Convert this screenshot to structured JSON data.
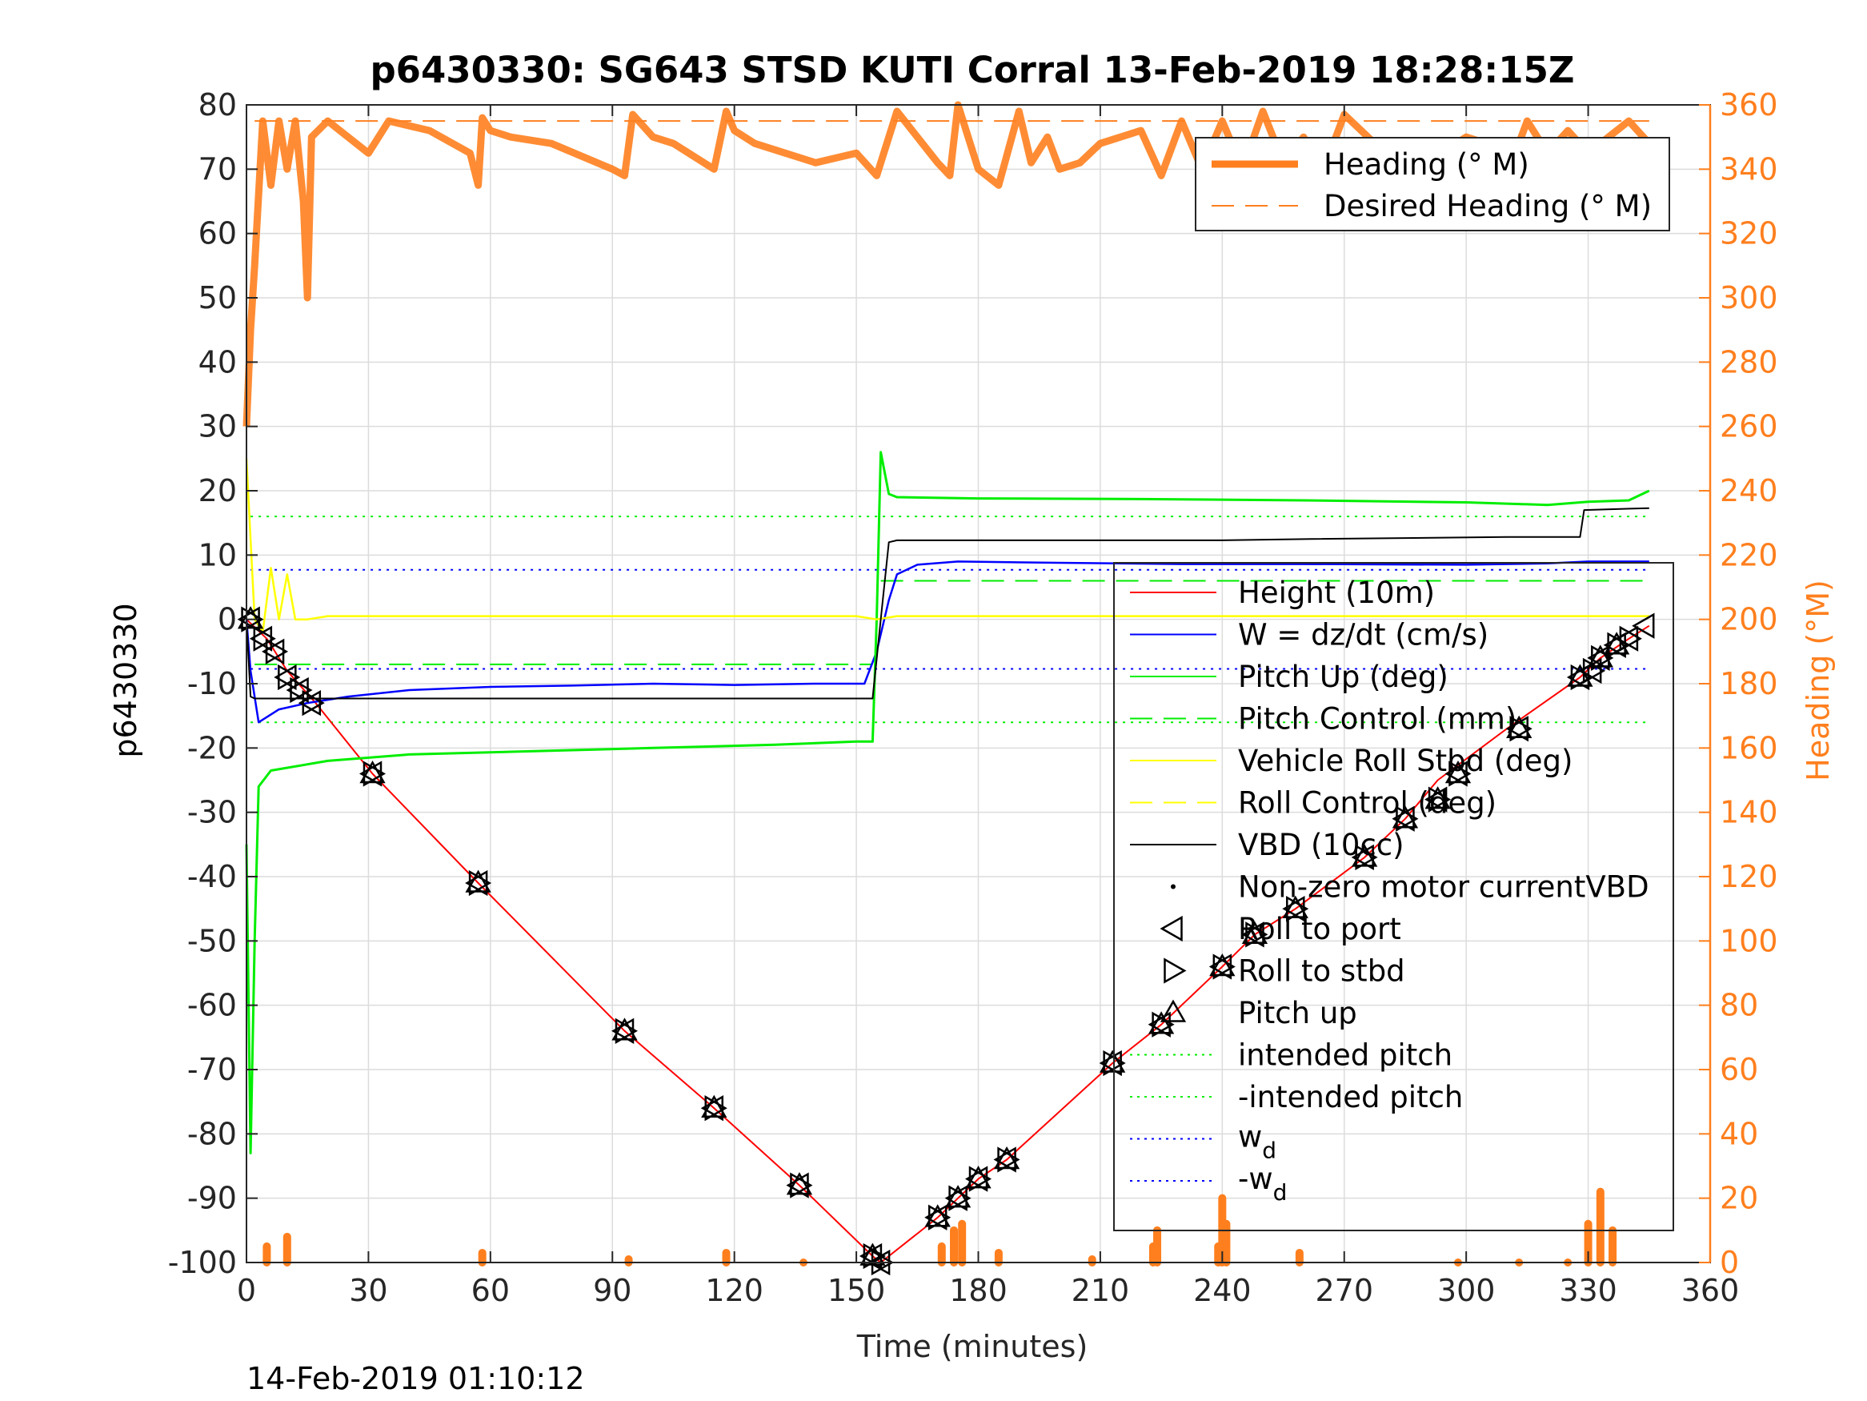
{
  "chart_data": {
    "type": "line",
    "title": "p6430330: SG643 STSD KUTI Corral 13-Feb-2019 18:28:15Z",
    "xlabel": "Time (minutes)",
    "ylabel_left": "p6430330",
    "ylabel_right": "Heading (°M)",
    "xlim": [
      0,
      360
    ],
    "ylim_left": [
      -100,
      80
    ],
    "ylim_right": [
      0,
      360
    ],
    "xticks": [
      "0",
      "30",
      "60",
      "90",
      "120",
      "150",
      "180",
      "210",
      "240",
      "270",
      "300",
      "330",
      "360"
    ],
    "yticks_left": [
      "80",
      "70",
      "60",
      "50",
      "40",
      "30",
      "20",
      "10",
      "0",
      "-10",
      "-20",
      "-30",
      "-40",
      "-50",
      "-60",
      "-70",
      "-80",
      "-90",
      "-100"
    ],
    "yticks_right": [
      "360",
      "340",
      "320",
      "300",
      "280",
      "260",
      "240",
      "220",
      "200",
      "180",
      "160",
      "140",
      "120",
      "100",
      "80",
      "60",
      "40",
      "20",
      "0"
    ],
    "grid": true,
    "colors": {
      "height": "#ff0000",
      "w": "#0000ff",
      "pitch": "#00ee00",
      "roll": "#ffff00",
      "vbd": "#000000",
      "heading": "#ff7f1e"
    },
    "legend_heading": {
      "placement": "top-right",
      "entries": [
        "Heading (° M)",
        "Desired Heading (° M)"
      ]
    },
    "legend_main": {
      "placement": "right",
      "entries": [
        "Height (10m)",
        "W = dz/dt (cm/s)",
        "Pitch Up (deg)",
        "Pitch Control (mm)",
        "Vehicle Roll Stbd (deg)",
        "Roll Control (deg)",
        "VBD (10cc)",
        "Non-zero motor currentVBD",
        "Roll to port",
        "Roll to stbd",
        "Pitch up",
        "intended pitch",
        "-intended pitch",
        "w_d",
        "-w_d"
      ]
    },
    "reference_lines": {
      "intended_pitch": 16,
      "neg_intended_pitch": -16,
      "w_d": 7.7,
      "neg_w_d": -7.7,
      "desired_heading": 355,
      "pitch_control_dive": -7,
      "pitch_control_climb": 6
    },
    "series": [
      {
        "name": "Height (10m)",
        "key": "height",
        "x": [
          0,
          5,
          10,
          17,
          31,
          57,
          93,
          115,
          136,
          154,
          156,
          170,
          175,
          180,
          187,
          213,
          225,
          240,
          248,
          258,
          275,
          285,
          293,
          310,
          328,
          333,
          340,
          345
        ],
        "y": [
          0,
          -3,
          -8,
          -13,
          -24,
          -41,
          -64,
          -76,
          -88,
          -99,
          -100,
          -93,
          -90,
          -87,
          -84,
          -69,
          -63,
          -54,
          -49,
          -45,
          -37,
          -31,
          -25,
          -17,
          -9,
          -6,
          -3,
          -1
        ]
      },
      {
        "name": "W = dz/dt (cm/s)",
        "key": "w",
        "x": [
          0,
          1,
          3,
          8,
          15,
          25,
          40,
          60,
          80,
          100,
          120,
          140,
          152,
          155,
          158,
          160,
          165,
          175,
          200,
          230,
          260,
          300,
          320,
          330,
          340,
          345
        ],
        "y": [
          0,
          -8,
          -16,
          -14,
          -13,
          -12,
          -11,
          -10.5,
          -10.3,
          -10,
          -10.2,
          -10,
          -10,
          -5,
          3,
          7,
          8.5,
          9,
          8.8,
          8.6,
          8.6,
          8.5,
          8.7,
          9,
          9,
          9
        ]
      },
      {
        "name": "Pitch Up (deg)",
        "key": "pitch",
        "x": [
          0,
          1,
          2,
          3,
          6,
          20,
          40,
          70,
          100,
          130,
          150,
          154,
          155,
          156,
          158,
          160,
          180,
          220,
          260,
          300,
          320,
          330,
          340,
          345
        ],
        "y": [
          -35,
          -83,
          -50,
          -26,
          -23.5,
          -22,
          -21,
          -20.5,
          -20,
          -19.5,
          -19,
          -19,
          0,
          26,
          19.5,
          19,
          18.8,
          18.7,
          18.5,
          18.2,
          17.8,
          18.3,
          18.5,
          20
        ]
      },
      {
        "name": "Vehicle Roll Stbd (deg)",
        "key": "roll",
        "x": [
          0,
          2,
          4,
          6,
          8,
          10,
          12,
          15,
          20,
          60,
          100,
          150,
          155,
          160,
          200,
          260,
          300,
          330,
          345
        ],
        "y": [
          25,
          0,
          -2,
          8,
          0,
          7,
          0,
          0,
          0.5,
          0.5,
          0.5,
          0.5,
          0,
          0.5,
          0.5,
          0.5,
          0.5,
          0.5,
          0.5
        ]
      },
      {
        "name": "VBD (10cc)",
        "key": "vbd",
        "x": [
          0,
          1,
          2,
          154,
          156,
          158,
          160,
          240,
          262,
          310,
          328,
          329,
          345
        ],
        "y": [
          0,
          -12,
          -12.3,
          -12.3,
          0,
          12,
          12.3,
          12.3,
          12.5,
          12.8,
          12.8,
          17,
          17.3
        ]
      },
      {
        "name": "Heading (° M)",
        "key": "heading",
        "x": [
          0,
          1,
          2,
          4,
          6,
          8,
          10,
          12,
          14,
          15,
          16,
          20,
          30,
          35,
          45,
          55,
          57,
          58,
          60,
          65,
          75,
          90,
          93,
          95,
          100,
          105,
          115,
          118,
          120,
          125,
          140,
          150,
          155,
          160,
          170,
          173,
          175,
          180,
          185,
          190,
          193,
          197,
          200,
          205,
          210,
          220,
          225,
          230,
          235,
          240,
          245,
          250,
          255,
          260,
          265,
          270,
          280,
          290,
          300,
          305,
          310,
          315,
          320,
          325,
          330,
          335,
          340,
          345
        ],
        "y": [
          260,
          290,
          310,
          355,
          335,
          355,
          340,
          355,
          330,
          300,
          350,
          355,
          345,
          355,
          352,
          345,
          335,
          356,
          352,
          350,
          348,
          340,
          338,
          357,
          350,
          348,
          340,
          358,
          352,
          348,
          342,
          345,
          338,
          358,
          342,
          338,
          360,
          340,
          335,
          358,
          342,
          350,
          340,
          342,
          348,
          352,
          338,
          355,
          340,
          355,
          340,
          358,
          342,
          350,
          340,
          357,
          345,
          342,
          350,
          348,
          338,
          355,
          345,
          352,
          345,
          350,
          355,
          348
        ]
      },
      {
        "name": "Heading (° M)",
        "key": "heading_low",
        "x": [
          5,
          10,
          58,
          94,
          118,
          137,
          171,
          174,
          176,
          185,
          208,
          223,
          224,
          239,
          240,
          241,
          259,
          298,
          313,
          325,
          330,
          333,
          336
        ],
        "y": [
          5,
          8,
          3,
          1,
          3,
          0,
          5,
          10,
          12,
          3,
          1,
          5,
          10,
          5,
          20,
          12,
          3,
          0,
          0,
          0,
          12,
          22,
          10
        ]
      }
    ],
    "markers": {
      "roll_to_port": {
        "x": [
          1,
          4,
          7,
          10,
          13,
          16,
          31,
          57,
          93,
          115,
          136,
          154,
          156,
          170,
          175,
          180,
          187,
          213,
          225,
          240,
          248,
          258,
          275,
          285,
          293,
          298,
          313,
          328,
          331,
          333,
          337,
          340,
          344
        ],
        "y": [
          0,
          -3,
          -5,
          -9,
          -11,
          -13,
          -24,
          -41,
          -64,
          -76,
          -88,
          -99,
          -100,
          -93,
          -90,
          -87,
          -84,
          -69,
          -63,
          -54,
          -49,
          -45,
          -37,
          -31,
          -28,
          -24,
          -17,
          -9,
          -8,
          -6,
          -4,
          -3,
          -1
        ]
      },
      "roll_to_stbd": {
        "x": [
          1,
          4,
          7,
          10,
          13,
          16,
          31,
          57,
          93,
          115,
          136,
          154,
          156,
          170,
          175,
          180,
          187,
          213,
          225,
          240,
          248,
          258,
          275,
          285,
          293,
          298,
          313,
          328,
          331,
          333,
          337,
          340
        ],
        "y": [
          0,
          -3,
          -5,
          -9,
          -11,
          -13,
          -24,
          -41,
          -64,
          -76,
          -88,
          -99,
          -100,
          -93,
          -90,
          -87,
          -84,
          -69,
          -63,
          -54,
          -49,
          -45,
          -37,
          -31,
          -28,
          -24,
          -17,
          -9,
          -8,
          -6,
          -4,
          -3
        ]
      },
      "pitch_up": {
        "x": [
          1,
          31,
          57,
          93,
          115,
          136,
          154,
          170,
          175,
          180,
          187,
          213,
          225,
          240,
          248,
          258,
          275,
          285,
          293,
          298,
          313,
          328,
          333,
          337
        ],
        "y": [
          0,
          -24,
          -41,
          -64,
          -76,
          -88,
          -99,
          -93,
          -90,
          -87,
          -84,
          -69,
          -63,
          -54,
          -49,
          -45,
          -37,
          -31,
          -28,
          -24,
          -17,
          -9,
          -6,
          -4
        ]
      }
    },
    "footer": "14-Feb-2019 01:10:12"
  }
}
